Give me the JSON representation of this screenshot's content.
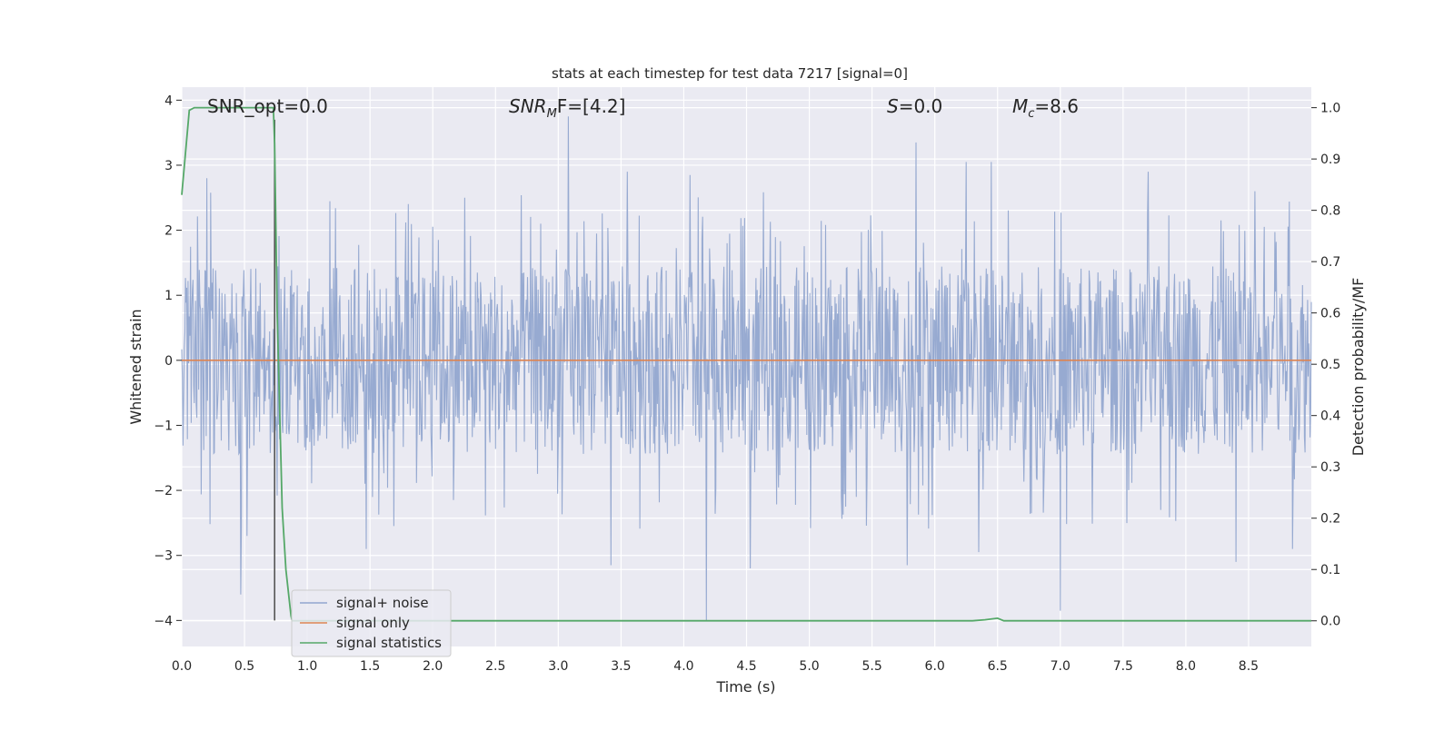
{
  "chart_data": {
    "type": "line",
    "title": "stats at each timestep for test data 7217 [signal=0]",
    "xlabel": "Time (s)",
    "ylabel_left": "Whitened strain",
    "ylabel_right": "Detection probability/MF",
    "xlim": [
      0.0,
      9.0
    ],
    "ylim_left": [
      -4.4,
      4.2
    ],
    "ylim_right": [
      -0.05,
      1.04
    ],
    "x_ticks": [
      "0.0",
      "0.5",
      "1.0",
      "1.5",
      "2.0",
      "2.5",
      "3.0",
      "3.5",
      "4.0",
      "4.5",
      "5.0",
      "5.5",
      "6.0",
      "6.5",
      "7.0",
      "7.5",
      "8.0",
      "8.5"
    ],
    "y_left_ticks": [
      "−4",
      "−3",
      "−2",
      "−1",
      "0",
      "1",
      "2",
      "3",
      "4"
    ],
    "y_right_ticks": [
      "0.0",
      "0.1",
      "0.2",
      "0.3",
      "0.4",
      "0.5",
      "0.6",
      "0.7",
      "0.8",
      "0.9",
      "1.0"
    ],
    "grid": true,
    "legend_placement": "lower-left",
    "annotations": {
      "snr_opt": "SNR_opt=0.0",
      "snr_mf_main": "SNR",
      "snr_mf_sub": "M",
      "snr_mf_rest": "F=[4.2]",
      "s_main": "S",
      "s_rest": "=0.0",
      "mc_main": "M",
      "mc_sub": "c",
      "mc_rest": "=8.6"
    },
    "series": [
      {
        "name": "signal+ noise",
        "axis": "left",
        "color": "#92a6cf",
        "description": "whitened noise trace, roughly uniform amplitude",
        "duration": 9.0,
        "typical_range": [
          -1.7,
          1.7
        ],
        "positive_spikes": [
          [
            0.2,
            2.8
          ],
          [
            3.08,
            3.75
          ],
          [
            3.55,
            2.9
          ],
          [
            4.05,
            2.85
          ],
          [
            5.85,
            3.35
          ],
          [
            6.25,
            3.05
          ],
          [
            6.45,
            3.05
          ],
          [
            7.7,
            2.9
          ],
          [
            8.55,
            2.6
          ]
        ],
        "negative_spikes": [
          [
            0.47,
            -3.6
          ],
          [
            0.52,
            -2.7
          ],
          [
            1.47,
            -2.9
          ],
          [
            3.42,
            -3.15
          ],
          [
            4.18,
            -4.0
          ],
          [
            4.53,
            -3.2
          ],
          [
            5.78,
            -3.15
          ],
          [
            6.35,
            -2.95
          ],
          [
            7.0,
            -3.85
          ],
          [
            8.4,
            -3.1
          ],
          [
            8.85,
            -2.9
          ]
        ]
      },
      {
        "name": "signal only",
        "axis": "left",
        "color": "#dd8452",
        "x": [
          0.0,
          9.0
        ],
        "y": [
          0.0,
          0.0
        ]
      },
      {
        "name": "signal statistics",
        "axis": "right",
        "color": "#55a868",
        "x": [
          0.0,
          0.06,
          0.1,
          0.2,
          0.5,
          0.73,
          0.74,
          0.76,
          0.8,
          0.83,
          0.87,
          0.88,
          1.0,
          2.0,
          4.0,
          6.3,
          6.4,
          6.5,
          6.55,
          7.0,
          8.0,
          9.0
        ],
        "y": [
          0.83,
          0.995,
          1.0,
          1.0,
          1.0,
          1.0,
          0.93,
          0.6,
          0.22,
          0.1,
          0.01,
          0.0,
          0.0,
          0.0,
          0.0,
          0.0,
          0.002,
          0.005,
          0.0,
          0.0,
          0.0,
          0.0
        ]
      }
    ],
    "vertical_marker": {
      "color": "#555555",
      "x": 0.74,
      "y_from": -4.0,
      "y_to": 3.7
    }
  }
}
